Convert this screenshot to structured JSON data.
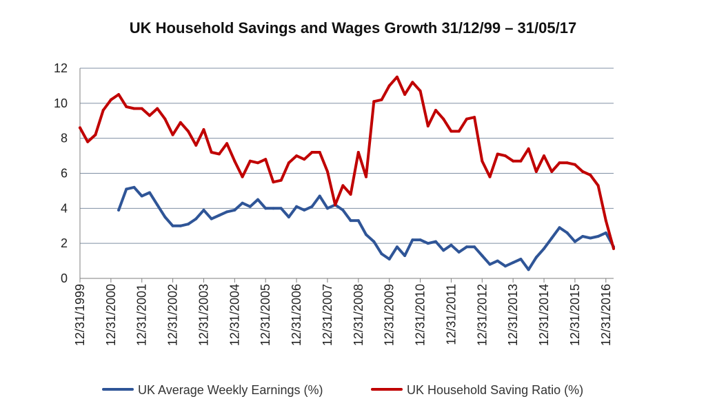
{
  "chart_data": {
    "type": "line",
    "title": "UK Household Savings and Wages Growth 31/12/99 – 31/05/17",
    "xlabel": "",
    "ylabel": "",
    "ylim": [
      0,
      12
    ],
    "yticks": [
      0,
      2,
      4,
      6,
      8,
      10,
      12
    ],
    "xlim": [
      1999.0,
      2016.25
    ],
    "xticks": [
      {
        "value": 1999,
        "label": "12/31/1999"
      },
      {
        "value": 2000,
        "label": "12/31/2000"
      },
      {
        "value": 2001,
        "label": "12/31/2001"
      },
      {
        "value": 2002,
        "label": "12/31/2002"
      },
      {
        "value": 2003,
        "label": "12/31/2003"
      },
      {
        "value": 2004,
        "label": "12/31/2004"
      },
      {
        "value": 2005,
        "label": "12/31/2005"
      },
      {
        "value": 2006,
        "label": "12/31/2006"
      },
      {
        "value": 2007,
        "label": "12/31/2007"
      },
      {
        "value": 2008,
        "label": "12/31/2008"
      },
      {
        "value": 2009,
        "label": "12/31/2009"
      },
      {
        "value": 2010,
        "label": "12/31/2010"
      },
      {
        "value": 2011,
        "label": "12/31/2011"
      },
      {
        "value": 2012,
        "label": "12/31/2012"
      },
      {
        "value": 2013,
        "label": "12/31/2013"
      },
      {
        "value": 2014,
        "label": "12/31/2014"
      },
      {
        "value": 2015,
        "label": "12/31/2015"
      },
      {
        "value": 2016,
        "label": "12/31/2016"
      }
    ],
    "grid": true,
    "legend_position": "bottom",
    "series": [
      {
        "name": "UK Average Weekly Earnings (%)",
        "color": "#2f5597",
        "x": [
          2000.25,
          2000.5,
          2000.75,
          2001,
          2001.25,
          2001.5,
          2001.75,
          2002,
          2002.25,
          2002.5,
          2002.75,
          2003,
          2003.25,
          2003.5,
          2003.75,
          2004,
          2004.25,
          2004.5,
          2004.75,
          2005,
          2005.25,
          2005.5,
          2005.75,
          2006,
          2006.25,
          2006.5,
          2006.75,
          2007,
          2007.25,
          2007.5,
          2007.75,
          2008,
          2008.25,
          2008.5,
          2008.75,
          2009,
          2009.25,
          2009.5,
          2009.75,
          2010,
          2010.25,
          2010.5,
          2010.75,
          2011,
          2011.25,
          2011.5,
          2011.75,
          2012,
          2012.25,
          2012.5,
          2012.75,
          2013,
          2013.25,
          2013.5,
          2013.75,
          2014,
          2014.25,
          2014.5,
          2014.75,
          2015,
          2015.25,
          2015.5,
          2015.75,
          2016,
          2016.25
        ],
        "values": [
          3.9,
          5.1,
          5.2,
          4.7,
          4.9,
          4.2,
          3.5,
          3.0,
          3.0,
          3.1,
          3.4,
          3.9,
          3.4,
          3.6,
          3.8,
          3.9,
          4.3,
          4.1,
          4.5,
          4.0,
          4.0,
          4.0,
          3.5,
          4.1,
          3.9,
          4.1,
          4.7,
          4.0,
          4.2,
          3.9,
          3.3,
          3.3,
          2.5,
          2.1,
          1.4,
          1.1,
          1.8,
          1.3,
          2.2,
          2.2,
          2.0,
          2.1,
          1.6,
          1.9,
          1.5,
          1.8,
          1.8,
          1.3,
          0.8,
          1.0,
          0.7,
          0.9,
          1.1,
          0.5,
          1.2,
          1.7,
          2.3,
          2.9,
          2.6,
          2.1,
          2.4,
          2.3,
          2.4,
          2.6,
          1.8
        ]
      },
      {
        "name": "UK Household Saving Ratio (%)",
        "color": "#c00000",
        "x": [
          1999,
          1999.25,
          1999.5,
          1999.75,
          2000,
          2000.25,
          2000.5,
          2000.75,
          2001,
          2001.25,
          2001.5,
          2001.75,
          2002,
          2002.25,
          2002.5,
          2002.75,
          2003,
          2003.25,
          2003.5,
          2003.75,
          2004,
          2004.25,
          2004.5,
          2004.75,
          2005,
          2005.25,
          2005.5,
          2005.75,
          2006,
          2006.25,
          2006.5,
          2006.75,
          2007,
          2007.25,
          2007.5,
          2007.75,
          2008,
          2008.25,
          2008.5,
          2008.75,
          2009,
          2009.25,
          2009.5,
          2009.75,
          2010,
          2010.25,
          2010.5,
          2010.75,
          2011,
          2011.25,
          2011.5,
          2011.75,
          2012,
          2012.25,
          2012.5,
          2012.75,
          2013,
          2013.25,
          2013.5,
          2013.75,
          2014,
          2014.25,
          2014.5,
          2014.75,
          2015,
          2015.25,
          2015.5,
          2015.75,
          2016,
          2016.25
        ],
        "values": [
          8.6,
          7.8,
          8.2,
          9.6,
          10.2,
          10.5,
          9.8,
          9.7,
          9.7,
          9.3,
          9.7,
          9.1,
          8.2,
          8.9,
          8.4,
          7.6,
          8.5,
          7.2,
          7.1,
          7.7,
          6.7,
          5.8,
          6.7,
          6.6,
          6.8,
          5.5,
          5.6,
          6.6,
          7.0,
          6.8,
          7.2,
          7.2,
          6.1,
          4.2,
          5.3,
          4.8,
          7.2,
          5.8,
          10.1,
          10.2,
          11.0,
          11.5,
          10.5,
          11.2,
          10.7,
          8.7,
          9.6,
          9.1,
          8.4,
          8.4,
          9.1,
          9.2,
          6.7,
          5.8,
          7.1,
          7.0,
          6.7,
          6.7,
          7.4,
          6.1,
          7.0,
          6.1,
          6.6,
          6.6,
          6.5,
          6.1,
          5.9,
          5.3,
          3.3,
          1.7
        ]
      }
    ]
  }
}
